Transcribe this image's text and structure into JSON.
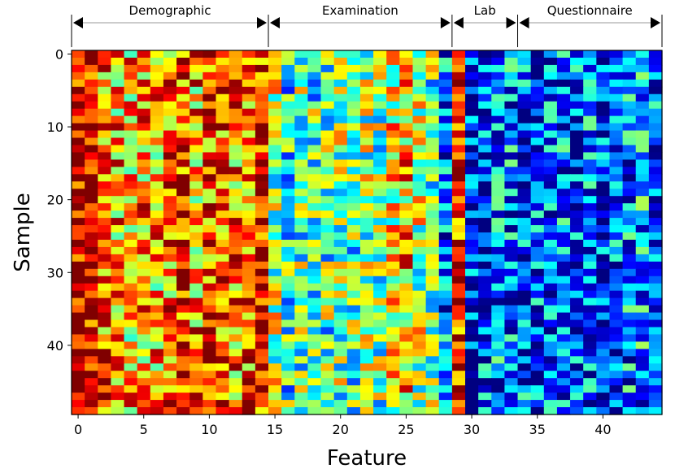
{
  "chart_data": {
    "type": "heatmap",
    "title": "",
    "xlabel": "Feature",
    "ylabel": "Sample",
    "n_features": 45,
    "n_samples": 50,
    "xlim": [
      -0.5,
      44.5
    ],
    "ylim": [
      49.5,
      -0.5
    ],
    "x_ticks": [
      0,
      5,
      10,
      15,
      20,
      25,
      30,
      35,
      40
    ],
    "y_ticks": [
      0,
      10,
      20,
      30,
      40
    ],
    "colormap": "jet",
    "value_range": [
      0,
      1
    ],
    "groups": [
      {
        "label": "Demographic",
        "start": -0.5,
        "end": 14.5
      },
      {
        "label": "Examination",
        "start": 14.5,
        "end": 28.5
      },
      {
        "label": "Lab",
        "start": 28.5,
        "end": 33.5
      },
      {
        "label": "Questionnaire",
        "start": 33.5,
        "end": 44.5
      }
    ],
    "column_profile": [
      0.95,
      0.94,
      0.78,
      0.7,
      0.68,
      0.72,
      0.7,
      0.76,
      0.85,
      0.72,
      0.82,
      0.82,
      0.74,
      0.8,
      0.88,
      0.55,
      0.42,
      0.47,
      0.44,
      0.46,
      0.5,
      0.44,
      0.52,
      0.5,
      0.62,
      0.7,
      0.55,
      0.46,
      0.22,
      0.88,
      0.14,
      0.2,
      0.24,
      0.24,
      0.2,
      0.18,
      0.22,
      0.24,
      0.2,
      0.22,
      0.14,
      0.2,
      0.24,
      0.28,
      0.2
    ],
    "noise_amplitude": 0.15,
    "random_seed": 7
  }
}
